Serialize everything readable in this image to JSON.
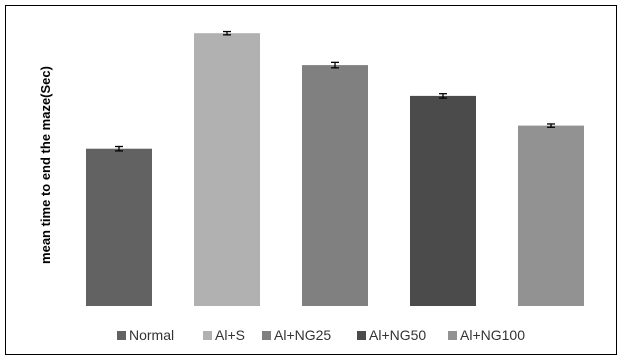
{
  "chart_data": {
    "type": "bar",
    "title": "",
    "xlabel": "",
    "ylabel": "mean time to end the maze(Sec)",
    "categories": [
      "Normal",
      "Al+S",
      "Al+NG25",
      "Al+NG50",
      "Al+NG100"
    ],
    "values": [
      143,
      248,
      219,
      191,
      164
    ],
    "errors": [
      2,
      1.5,
      2.5,
      2,
      1.5
    ],
    "colors": [
      "#626262",
      "#b1b1b1",
      "#808080",
      "#4b4b4b",
      "#929292"
    ],
    "ylim": [
      0,
      260
    ],
    "grid": false,
    "show_y_ticks": false,
    "legend": {
      "position": "bottom",
      "entries": [
        "Normal",
        "Al+S",
        "Al+NG25",
        "Al+NG50",
        "Al+NG100"
      ]
    }
  }
}
